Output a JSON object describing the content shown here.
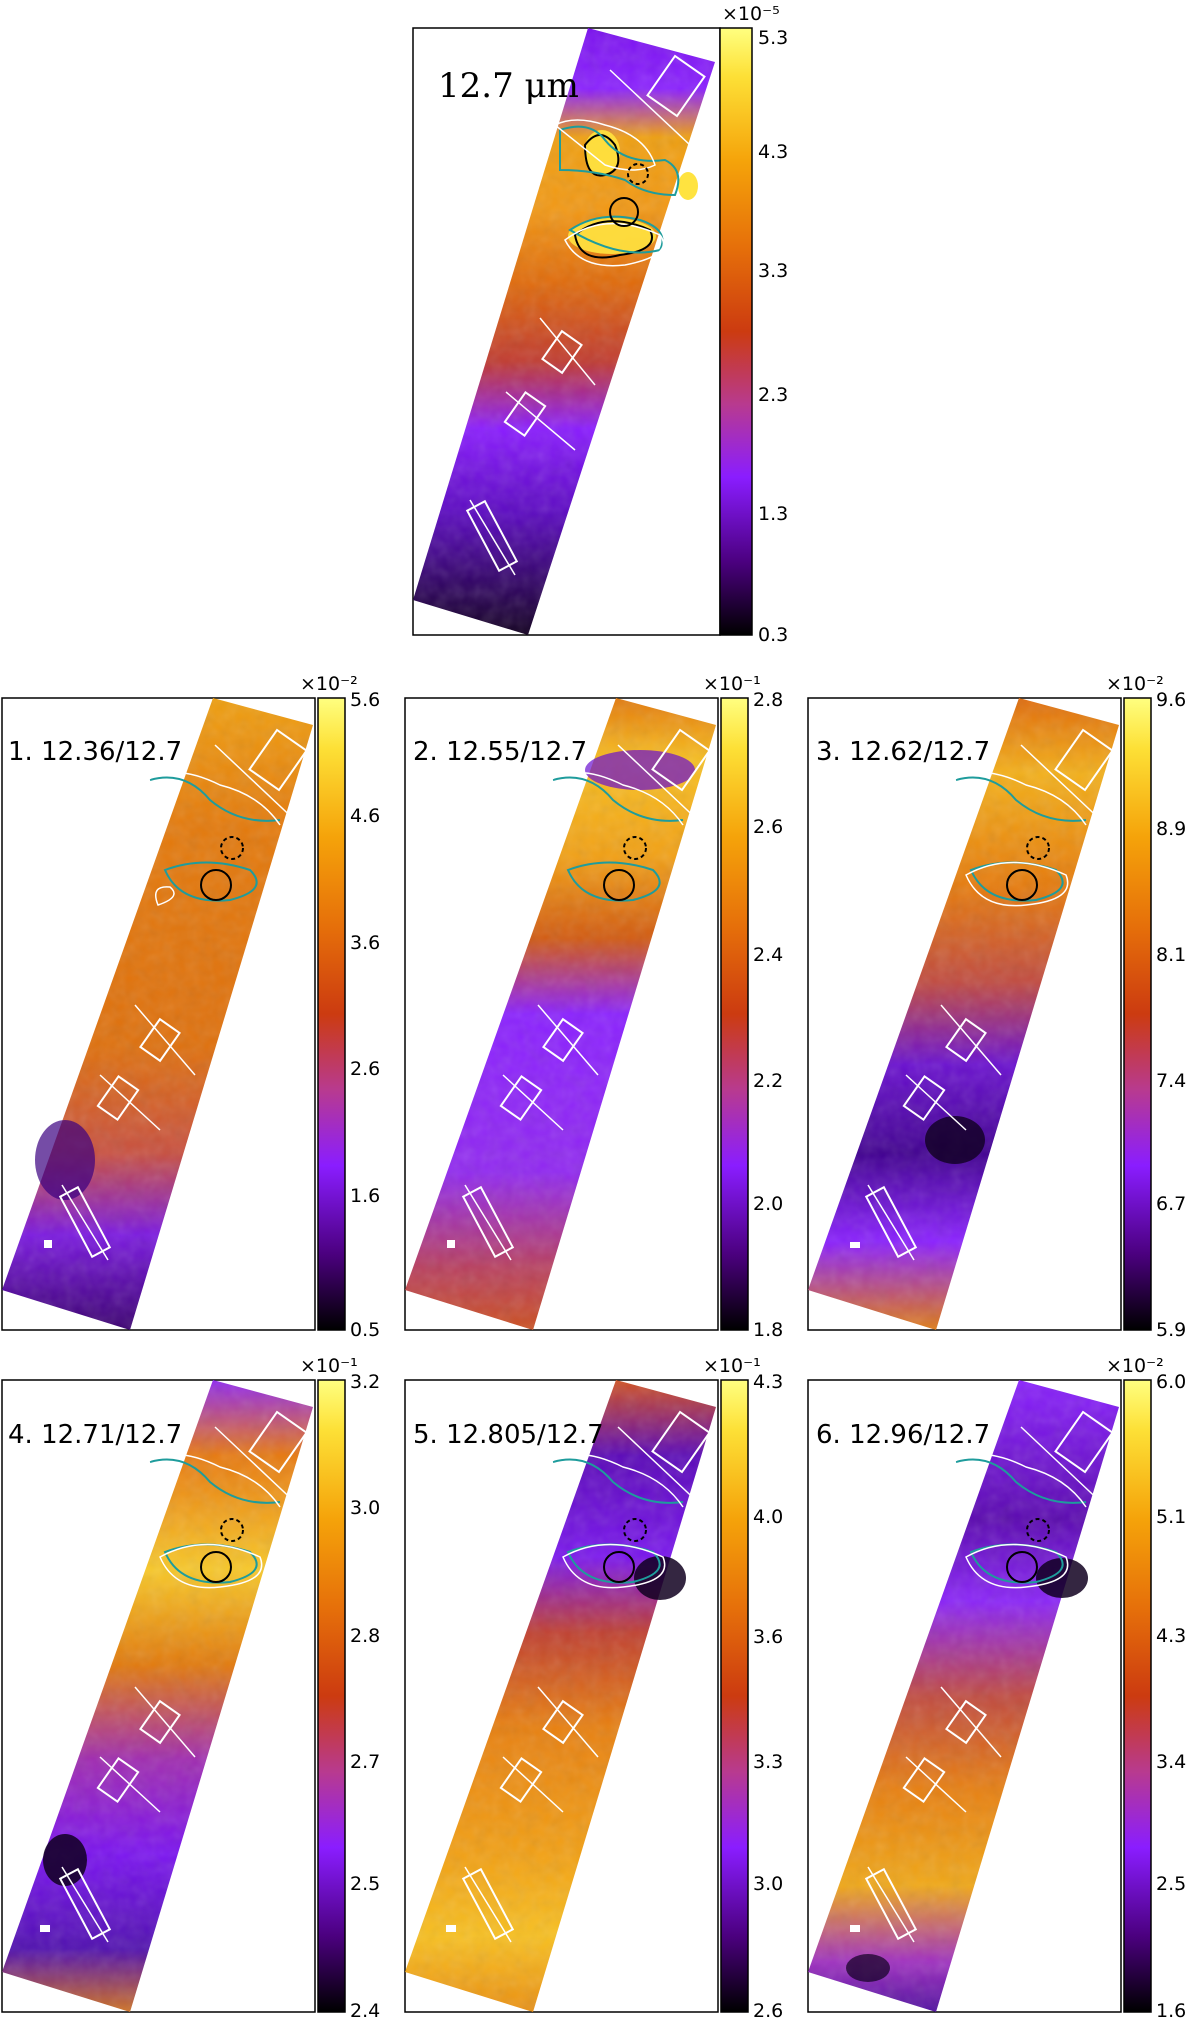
{
  "figure": {
    "colormap": [
      "#000000",
      "#4b007f",
      "#8a1dff",
      "#b83a8f",
      "#cc3b10",
      "#e6700a",
      "#f5a30a",
      "#fde036",
      "#ffff80"
    ],
    "panels": [
      {
        "title": "12.7 μm",
        "exponent": "×10⁻⁵",
        "ticks": [
          "5.3",
          "4.3",
          "3.3",
          "2.3",
          "1.3",
          "0.3"
        ]
      },
      {
        "title": "1.  12.36/12.7",
        "exponent": "×10⁻²",
        "ticks": [
          "5.6",
          "4.6",
          "3.6",
          "2.6",
          "1.6",
          "0.5"
        ]
      },
      {
        "title": "2.  12.55/12.7",
        "exponent": "×10⁻¹",
        "ticks": [
          "2.8",
          "2.6",
          "2.4",
          "2.2",
          "2.0",
          "1.8"
        ]
      },
      {
        "title": "3.  12.62/12.7",
        "exponent": "×10⁻²",
        "ticks": [
          "9.6",
          "8.9",
          "8.1",
          "7.4",
          "6.7",
          "5.9"
        ]
      },
      {
        "title": "4.  12.71/12.7",
        "exponent": "×10⁻¹",
        "ticks": [
          "3.2",
          "3.0",
          "2.8",
          "2.7",
          "2.5",
          "2.4"
        ]
      },
      {
        "title": "5.  12.805/12.7",
        "exponent": "×10⁻¹",
        "ticks": [
          "4.3",
          "4.0",
          "3.6",
          "3.3",
          "3.0",
          "2.6"
        ]
      },
      {
        "title": "6.  12.96/12.7",
        "exponent": "×10⁻²",
        "ticks": [
          "6.0",
          "5.1",
          "4.3",
          "3.4",
          "2.5",
          "1.6"
        ]
      }
    ]
  }
}
